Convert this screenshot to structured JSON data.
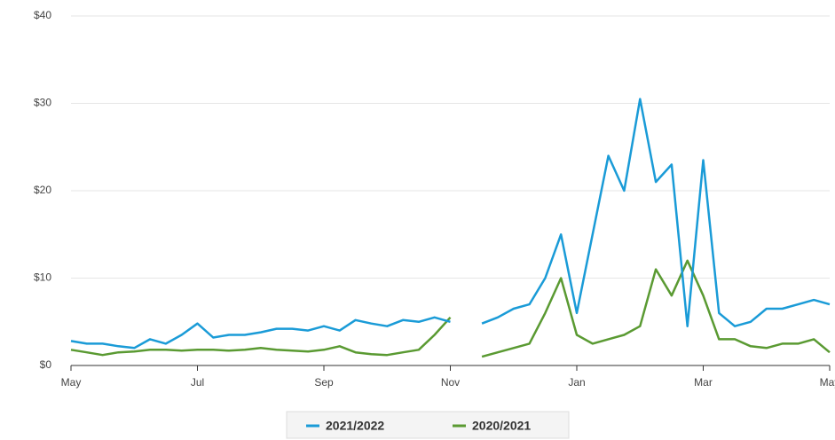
{
  "chart_data": {
    "type": "line",
    "categories": [
      "May",
      null,
      null,
      null,
      null,
      null,
      null,
      null,
      "Jul",
      null,
      null,
      null,
      null,
      null,
      null,
      null,
      "Sep",
      null,
      null,
      null,
      null,
      null,
      null,
      null,
      "Nov",
      null,
      null,
      null,
      null,
      null,
      null,
      null,
      "Jan",
      null,
      null,
      null,
      null,
      null,
      null,
      null,
      "Mar",
      null,
      null,
      null,
      null,
      null,
      null,
      null,
      "May"
    ],
    "series": [
      {
        "name": "2021/2022",
        "color": "#1a9bd7",
        "values": [
          2.8,
          2.5,
          2.5,
          2.2,
          2.0,
          3.0,
          2.5,
          3.5,
          4.8,
          3.2,
          3.5,
          3.5,
          3.8,
          4.2,
          4.2,
          4.0,
          4.5,
          4.0,
          5.2,
          4.8,
          4.5,
          5.2,
          5.0,
          5.5,
          5.0,
          null,
          4.8,
          5.5,
          6.5,
          7.0,
          10,
          15,
          6,
          15,
          24,
          20,
          30.5,
          21,
          23,
          4.5,
          23.5,
          6,
          4.5,
          5.0,
          6.5,
          6.5,
          7.0,
          7.5,
          7.0
        ]
      },
      {
        "name": "2020/2021",
        "color": "#5a9a32",
        "values": [
          1.8,
          1.5,
          1.2,
          1.5,
          1.6,
          1.8,
          1.8,
          1.7,
          1.8,
          1.8,
          1.7,
          1.8,
          2.0,
          1.8,
          1.7,
          1.6,
          1.8,
          2.2,
          1.5,
          1.3,
          1.2,
          1.5,
          1.8,
          3.5,
          5.5,
          null,
          1.0,
          1.5,
          2.0,
          2.5,
          6,
          10,
          3.5,
          2.5,
          3,
          3.5,
          4.5,
          11,
          8,
          12,
          8,
          3,
          3,
          2.2,
          2.0,
          2.5,
          2.5,
          3,
          1.5
        ]
      }
    ],
    "ylim": [
      0,
      40
    ],
    "yticks": [
      {
        "value": 0,
        "label": "$0"
      },
      {
        "value": 10,
        "label": "$10"
      },
      {
        "value": 20,
        "label": "$20"
      },
      {
        "value": 30,
        "label": "$30"
      },
      {
        "value": 40,
        "label": "$40"
      }
    ],
    "grid": true
  }
}
